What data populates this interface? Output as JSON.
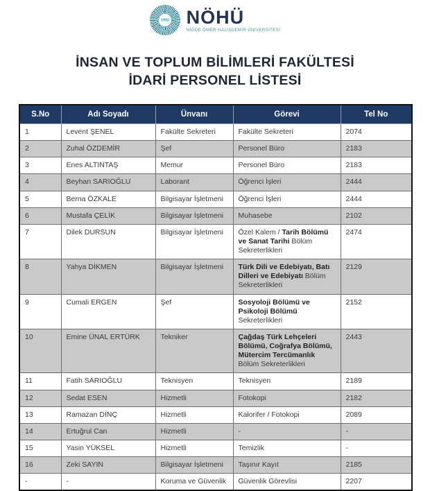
{
  "logo": {
    "year": "1992",
    "name": "NÖHÜ",
    "subtitle": "NİĞDE ÖMER HALİSDEMİR ÜNİVERSİTESİ"
  },
  "title": {
    "line1": "İNSAN VE TOPLUM BİLİMLERİ FAKÜLTESİ",
    "line2": "İDARİ PERSONEL LİSTESİ"
  },
  "colors": {
    "header_bg": "#1F3864",
    "row_alt": "#C9C9C9",
    "accent_teal": "#1C9FAD",
    "title_text": "#1F2736"
  },
  "table": {
    "headers": [
      "S.No",
      "Adı Soyadı",
      "Ünvanı",
      "Görevi",
      "Tel No"
    ],
    "rows": [
      {
        "no": "1",
        "name": "Levent ŞENEL",
        "title": "Fakülte Sekreteri",
        "duty": [
          {
            "t": "Fakülte Sekreteri",
            "b": false
          }
        ],
        "tel": "2074"
      },
      {
        "no": "2",
        "name": "Zuhal ÖZDEMİR",
        "title": "Şef",
        "duty": [
          {
            "t": "Personel Büro",
            "b": false
          }
        ],
        "tel": "2183"
      },
      {
        "no": "3",
        "name": "Enes ALTINTAŞ",
        "title": "Memur",
        "duty": [
          {
            "t": "Personel Büro",
            "b": false
          }
        ],
        "tel": "2183"
      },
      {
        "no": "4",
        "name": "Beyhan SARIOĞLU",
        "title": "Laborant",
        "duty": [
          {
            "t": "Öğrenci İşleri",
            "b": false
          }
        ],
        "tel": "2444"
      },
      {
        "no": "5",
        "name": "Berna ÖZKALE",
        "title": "Bilgisayar İşletmeni",
        "duty": [
          {
            "t": "Öğrenci İşleri",
            "b": false
          }
        ],
        "tel": "2444"
      },
      {
        "no": "6",
        "name": "Mustafa ÇELİK",
        "title": "Bilgisayar İşletmeni",
        "duty": [
          {
            "t": "Muhasebe",
            "b": false
          }
        ],
        "tel": "2102"
      },
      {
        "no": "7",
        "name": "Dilek DURSUN",
        "title": "Bilgisayar İşletmeni",
        "duty": [
          {
            "t": "Özel Kalem / ",
            "b": false
          },
          {
            "t": "Tarih Bölümü ve Sanat Tarihi",
            "b": true
          },
          {
            "t": " Bölüm Sekreterlikleri",
            "b": false
          }
        ],
        "tel": "2474"
      },
      {
        "no": "8",
        "name": "Yahya DİKMEN",
        "title": "Bilgisayar İşletmeni",
        "duty": [
          {
            "t": "Türk Dili ve Edebiyatı, Batı Dilleri ve Edebiyatı",
            "b": true
          },
          {
            "t": " Bölüm Sekreterlikleri",
            "b": false
          }
        ],
        "tel": "2129"
      },
      {
        "no": "9",
        "name": "Cumali ERGEN",
        "title": "Şef",
        "duty": [
          {
            "t": "Sosyoloji Bölümü ve Psikoloji Bölümü",
            "b": true
          },
          {
            "t": " Sekreterlikleri",
            "b": false
          }
        ],
        "tel": "2152"
      },
      {
        "no": "10",
        "name": "Emine ÜNAL ERTÜRK",
        "title": "Tekniker",
        "duty": [
          {
            "t": "Çağdaş Türk Lehçeleri Bölümü, Coğrafya Bölümü, Mütercim Tercümanlık",
            "b": true
          },
          {
            "t": " Bölüm Sekreterlikleri",
            "b": false
          }
        ],
        "tel": "2443"
      },
      {
        "no": "11",
        "name": "Fatih SARIOĞLU",
        "title": "Teknisyen",
        "duty": [
          {
            "t": "Teknisyen",
            "b": false
          }
        ],
        "tel": "2189"
      },
      {
        "no": "12",
        "name": "Sedat ESEN",
        "title": "Hizmetli",
        "duty": [
          {
            "t": "Fotokopi",
            "b": false
          }
        ],
        "tel": "2182"
      },
      {
        "no": "13",
        "name": "Ramazan DİNÇ",
        "title": "Hizmetli",
        "duty": [
          {
            "t": "Kalorifer / Fotokopi",
            "b": false
          }
        ],
        "tel": "2089"
      },
      {
        "no": "14",
        "name": "Ertuğrul Can",
        "title": "Hizmetli",
        "duty": [
          {
            "t": "-",
            "b": false
          }
        ],
        "tel": "-"
      },
      {
        "no": "15",
        "name": "Yasin YÜKSEL",
        "title": "Hizmetli",
        "duty": [
          {
            "t": "Temizlik",
            "b": false
          }
        ],
        "tel": "-"
      },
      {
        "no": "16",
        "name": "Zeki SAYIN",
        "title": "Bilgisayar İşletmeni",
        "duty": [
          {
            "t": "Taşınır Kayıt",
            "b": false
          }
        ],
        "tel": "2185"
      },
      {
        "no": "-",
        "name": "-",
        "title": "Koruma ve Güvenlik",
        "duty": [
          {
            "t": "Güvenlik Görevlisi",
            "b": false
          }
        ],
        "tel": "2207"
      }
    ]
  }
}
